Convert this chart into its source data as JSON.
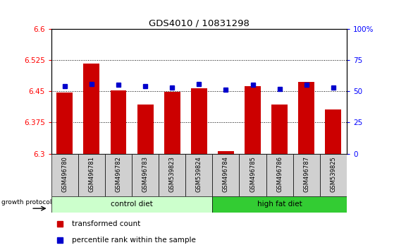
{
  "title": "GDS4010 / 10831298",
  "samples": [
    "GSM496780",
    "GSM496781",
    "GSM496782",
    "GSM496783",
    "GSM539823",
    "GSM539824",
    "GSM496784",
    "GSM496785",
    "GSM496786",
    "GSM496787",
    "GSM539825"
  ],
  "red_values": [
    6.447,
    6.516,
    6.452,
    6.418,
    6.448,
    6.457,
    6.307,
    6.462,
    6.418,
    6.473,
    6.406
  ],
  "blue_values": [
    54,
    56,
    55,
    54,
    53,
    56,
    51,
    55,
    52,
    55,
    53
  ],
  "ylim_left": [
    6.3,
    6.6
  ],
  "ylim_right": [
    0,
    100
  ],
  "yticks_left": [
    6.3,
    6.375,
    6.45,
    6.525,
    6.6
  ],
  "yticks_right": [
    0,
    25,
    50,
    75,
    100
  ],
  "ytick_labels_left": [
    "6.3",
    "6.375",
    "6.45",
    "6.525",
    "6.6"
  ],
  "ytick_labels_right": [
    "0",
    "25",
    "50",
    "75",
    "100%"
  ],
  "control_diet_indices": [
    0,
    1,
    2,
    3,
    4,
    5
  ],
  "high_fat_indices": [
    6,
    7,
    8,
    9,
    10
  ],
  "control_diet_label": "control diet",
  "high_fat_label": "high fat diet",
  "growth_protocol_label": "growth protocol",
  "legend_red": "transformed count",
  "legend_blue": "percentile rank within the sample",
  "bar_color": "#cc0000",
  "blue_color": "#0000cc",
  "control_bg": "#ccffcc",
  "high_fat_bg": "#33cc33",
  "sample_bg": "#d0d0d0",
  "bar_width": 0.6,
  "bar_bottom": 6.3
}
